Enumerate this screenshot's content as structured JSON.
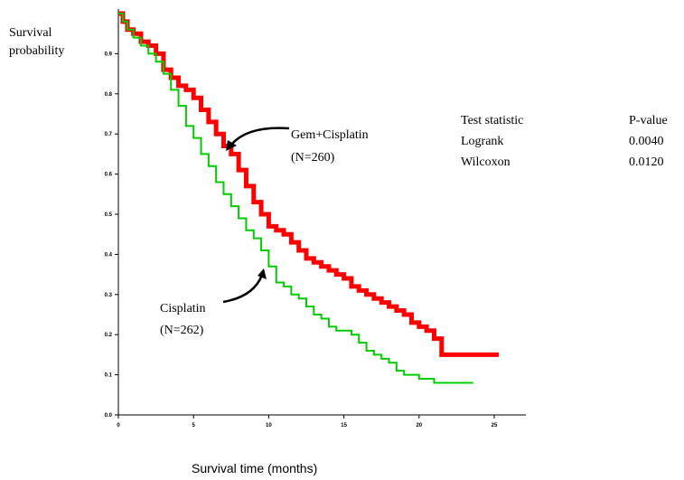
{
  "chart_data": {
    "type": "line",
    "subtype": "step",
    "ylabel_line1": "Survival",
    "ylabel_line2": "probability",
    "xlabel": "Survival time (months)",
    "xlim": [
      0,
      25
    ],
    "ylim": [
      0,
      1
    ],
    "x_ticks": [
      0,
      5,
      10,
      15,
      20,
      25
    ],
    "x_tick_labels": [
      "0",
      "5",
      "10",
      "15",
      "20",
      "25"
    ],
    "y_ticks": [
      0.0,
      0.1,
      0.2,
      0.3,
      0.4,
      0.5,
      0.6,
      0.7,
      0.8,
      0.9
    ],
    "y_tick_labels": [
      "0.0",
      "0.1",
      "0.2",
      "0.3",
      "0.4",
      "0.5",
      "0.6",
      "0.7",
      "0.8",
      "0.9"
    ],
    "grid": false,
    "series": [
      {
        "name": "Gem+Cisplatin",
        "n_label": "(N=260)",
        "color": "#ff0000",
        "x": [
          0,
          0.3,
          0.6,
          1,
          1.5,
          2,
          2.5,
          3,
          3.5,
          4,
          4.5,
          5,
          5.5,
          6,
          6.5,
          7,
          7.5,
          8,
          8.5,
          9,
          9.5,
          10,
          10.5,
          11,
          11.5,
          12,
          12.5,
          13,
          13.5,
          14,
          14.5,
          15,
          15.5,
          16,
          16.5,
          17,
          17.5,
          18,
          18.5,
          19,
          19.5,
          20,
          20.5,
          21,
          21.5,
          22,
          23,
          24,
          25.3
        ],
        "y": [
          1.0,
          0.98,
          0.96,
          0.95,
          0.93,
          0.92,
          0.9,
          0.86,
          0.84,
          0.82,
          0.81,
          0.79,
          0.76,
          0.73,
          0.7,
          0.67,
          0.65,
          0.61,
          0.57,
          0.53,
          0.5,
          0.47,
          0.46,
          0.45,
          0.43,
          0.41,
          0.39,
          0.38,
          0.37,
          0.36,
          0.35,
          0.34,
          0.32,
          0.31,
          0.3,
          0.29,
          0.28,
          0.27,
          0.26,
          0.25,
          0.23,
          0.22,
          0.21,
          0.19,
          0.15,
          0.15,
          0.15,
          0.15,
          0.15
        ]
      },
      {
        "name": "Cisplatin",
        "n_label": "(N=262)",
        "color": "#00cc00",
        "x": [
          0,
          0.3,
          0.6,
          1,
          1.5,
          2,
          2.5,
          3,
          3.5,
          4,
          4.5,
          5,
          5.5,
          6,
          6.5,
          7,
          7.5,
          8,
          8.5,
          9,
          9.5,
          10,
          10.5,
          11,
          11.5,
          12,
          12.5,
          13,
          13.5,
          14,
          14.5,
          15,
          15.5,
          16,
          16.5,
          17,
          17.5,
          18,
          18.5,
          19,
          19.5,
          20,
          20.5,
          21,
          22,
          23,
          23.6
        ],
        "y": [
          1.0,
          0.98,
          0.96,
          0.94,
          0.92,
          0.9,
          0.88,
          0.85,
          0.81,
          0.77,
          0.72,
          0.69,
          0.65,
          0.62,
          0.58,
          0.55,
          0.52,
          0.49,
          0.46,
          0.44,
          0.41,
          0.37,
          0.33,
          0.32,
          0.3,
          0.29,
          0.27,
          0.25,
          0.24,
          0.22,
          0.21,
          0.21,
          0.2,
          0.18,
          0.16,
          0.15,
          0.14,
          0.13,
          0.11,
          0.1,
          0.1,
          0.09,
          0.09,
          0.08,
          0.08,
          0.08,
          0.08
        ]
      }
    ],
    "stats_table": {
      "headers": [
        "Test statistic",
        "P-value"
      ],
      "rows": [
        [
          "Logrank",
          "0.0040"
        ],
        [
          "Wilcoxon",
          "0.0120"
        ]
      ]
    }
  }
}
